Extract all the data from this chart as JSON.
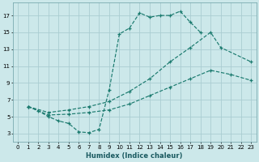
{
  "xlabel": "Humidex (Indice chaleur)",
  "bg_color": "#cce8ea",
  "grid_color": "#aacdd2",
  "line_color": "#1a7a6e",
  "xlim": [
    -0.5,
    23.5
  ],
  "ylim": [
    2.0,
    18.5
  ],
  "xticks": [
    0,
    1,
    2,
    3,
    4,
    5,
    6,
    7,
    8,
    9,
    10,
    11,
    12,
    13,
    14,
    15,
    16,
    17,
    18,
    19,
    20,
    21,
    22,
    23
  ],
  "yticks": [
    3,
    5,
    7,
    9,
    11,
    13,
    15,
    17
  ],
  "line1_x": [
    1,
    2,
    3,
    4,
    5,
    6,
    7,
    8,
    9,
    10,
    11,
    12,
    13,
    14,
    15,
    16,
    17,
    18
  ],
  "line1_y": [
    6.2,
    5.7,
    5.0,
    4.5,
    4.2,
    3.2,
    3.1,
    3.5,
    8.2,
    14.8,
    15.5,
    17.3,
    16.8,
    17.0,
    17.0,
    17.5,
    16.2,
    15.0
  ],
  "line2_x": [
    1,
    3,
    5,
    7,
    9,
    11,
    13,
    15,
    17,
    19,
    20,
    23
  ],
  "line2_y": [
    6.2,
    5.5,
    5.8,
    6.2,
    6.8,
    8.0,
    9.5,
    11.5,
    13.2,
    15.0,
    13.2,
    11.5
  ],
  "line3_x": [
    1,
    3,
    5,
    7,
    9,
    11,
    13,
    15,
    17,
    19,
    21,
    23
  ],
  "line3_y": [
    6.2,
    5.2,
    5.3,
    5.5,
    5.8,
    6.5,
    7.5,
    8.5,
    9.5,
    10.5,
    10.0,
    9.3
  ]
}
